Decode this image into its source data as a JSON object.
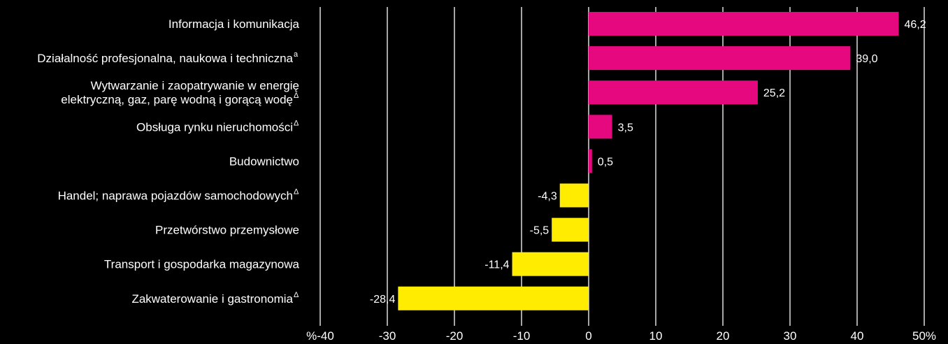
{
  "chart_data": {
    "type": "bar",
    "orientation": "horizontal",
    "categories": [
      {
        "lines": [
          "Informacja i komunikacja"
        ],
        "marker": ""
      },
      {
        "lines": [
          "Działalność profesjonalna, naukowa i techniczna"
        ],
        "marker": "a"
      },
      {
        "lines": [
          "Wytwarzanie i zaopatrywanie w energię",
          "elektryczną, gaz, parę wodną i gorącą wodę"
        ],
        "marker": "Δ"
      },
      {
        "lines": [
          "Obsługa rynku nieruchomości"
        ],
        "marker": "Δ"
      },
      {
        "lines": [
          "Budownictwo"
        ],
        "marker": ""
      },
      {
        "lines": [
          "Handel; naprawa pojazdów samochodowych"
        ],
        "marker": "Δ"
      },
      {
        "lines": [
          "Przetwórstwo przemysłowe"
        ],
        "marker": ""
      },
      {
        "lines": [
          "Transport i gospodarka magazynowa"
        ],
        "marker": ""
      },
      {
        "lines": [
          "Zakwaterowanie i gastronomia"
        ],
        "marker": "Δ"
      }
    ],
    "values": [
      46.2,
      39.0,
      25.2,
      3.5,
      0.5,
      -4.3,
      -5.5,
      -11.4,
      -28.4
    ],
    "value_labels": [
      "46,2",
      "39,0",
      "25,2",
      "3,5",
      "0,5",
      "-4,3",
      "-5,5",
      "-11,4",
      "-28,4"
    ],
    "xlim": [
      -40,
      50
    ],
    "x_ticks": [
      -40,
      -30,
      -20,
      -10,
      0,
      10,
      20,
      30,
      40,
      50
    ],
    "x_tick_labels": [
      "%-40",
      "-30",
      "-20",
      "-10",
      "0",
      "10",
      "20",
      "30",
      "40",
      "50%"
    ],
    "grid": true,
    "colors": {
      "positive": "#E6087F",
      "negative": "#FFEC00",
      "background": "#000000",
      "grid": "#ffffff",
      "text": "#ffffff"
    }
  }
}
